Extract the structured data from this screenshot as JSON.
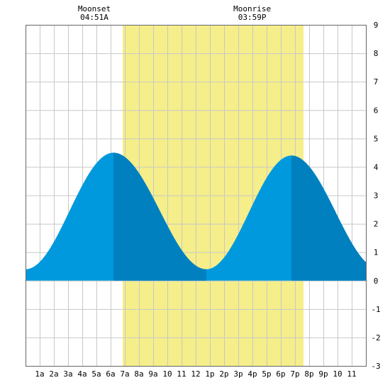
{
  "chart_data": {
    "type": "area",
    "title": "",
    "xlabel": "",
    "ylabel": "",
    "x_ticks": [
      "1a",
      "2a",
      "3a",
      "4a",
      "5a",
      "6a",
      "7a",
      "8a",
      "9a",
      "10",
      "11",
      "12",
      "1p",
      "2p",
      "3p",
      "4p",
      "5p",
      "6p",
      "7p",
      "8p",
      "9p",
      "10",
      "11"
    ],
    "xlim": [
      0,
      24
    ],
    "ylim": [
      -3,
      9
    ],
    "y_ticks": [
      "-3",
      "-2",
      "-1",
      "0",
      "1",
      "2",
      "3",
      "4",
      "5",
      "6",
      "7",
      "8",
      "9"
    ],
    "grid": true,
    "daylight": {
      "start": 6.85,
      "end": 19.6
    },
    "events": [
      {
        "label": "Moonset",
        "time": "04:51A",
        "x": 4.85
      },
      {
        "label": "Moonrise",
        "time": "03:59P",
        "x": 15.98
      }
    ],
    "extrema": [
      {
        "kind": "low",
        "x": 0.0,
        "y": 0.4
      },
      {
        "kind": "high",
        "x": 6.2,
        "y": 4.5
      },
      {
        "kind": "low",
        "x": 12.75,
        "y": 0.4
      },
      {
        "kind": "high",
        "x": 18.75,
        "y": 4.4
      },
      {
        "kind": "low",
        "x": 25.0,
        "y": 0.4
      }
    ],
    "shade_bands": [
      [
        6.2,
        12.75
      ],
      [
        18.75,
        24
      ]
    ],
    "colors": {
      "tide_fill": "#0099dd",
      "tide_shade": "#0080bf",
      "daylight": "#f5ee8a",
      "grid": "#c8c8c8",
      "border": "#666666"
    }
  }
}
